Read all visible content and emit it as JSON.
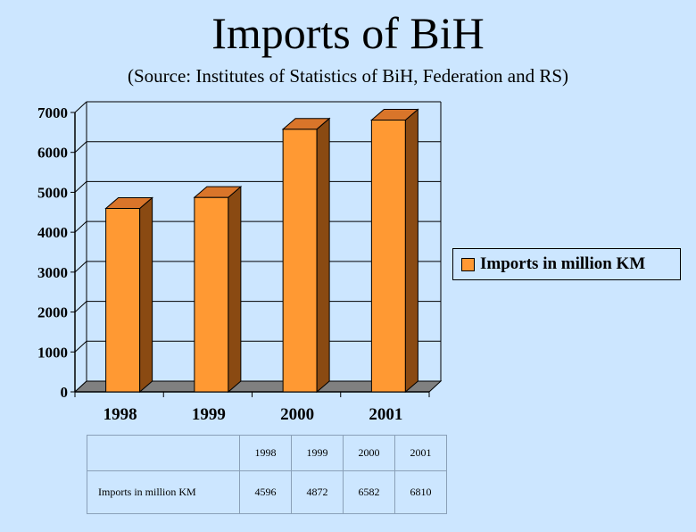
{
  "chart_data": {
    "type": "bar",
    "title": "Imports of BiH",
    "subtitle": "(Source: Institutes of Statistics of BiH, Federation and RS)",
    "categories": [
      "1998",
      "1999",
      "2000",
      "2001"
    ],
    "series": [
      {
        "name": "Imports in million KM",
        "values": [
          4596,
          4872,
          6582,
          6810
        ]
      }
    ],
    "ylim": [
      0,
      7000
    ],
    "yticks": [
      "0",
      "1000",
      "2000",
      "3000",
      "4000",
      "5000",
      "6000",
      "7000"
    ],
    "grid": true,
    "legend_position": "right",
    "bar_color": "#ff9933",
    "bar_side_color": "#8a4a12",
    "bar_top_color": "#d9752a",
    "floor_color": "#808080",
    "background_color": "#cce6ff"
  },
  "table": {
    "years": [
      "1998",
      "1999",
      "2000",
      "2001"
    ],
    "row_label": "Imports in million KM",
    "values": [
      "4596",
      "4872",
      "6582",
      "6810"
    ]
  }
}
